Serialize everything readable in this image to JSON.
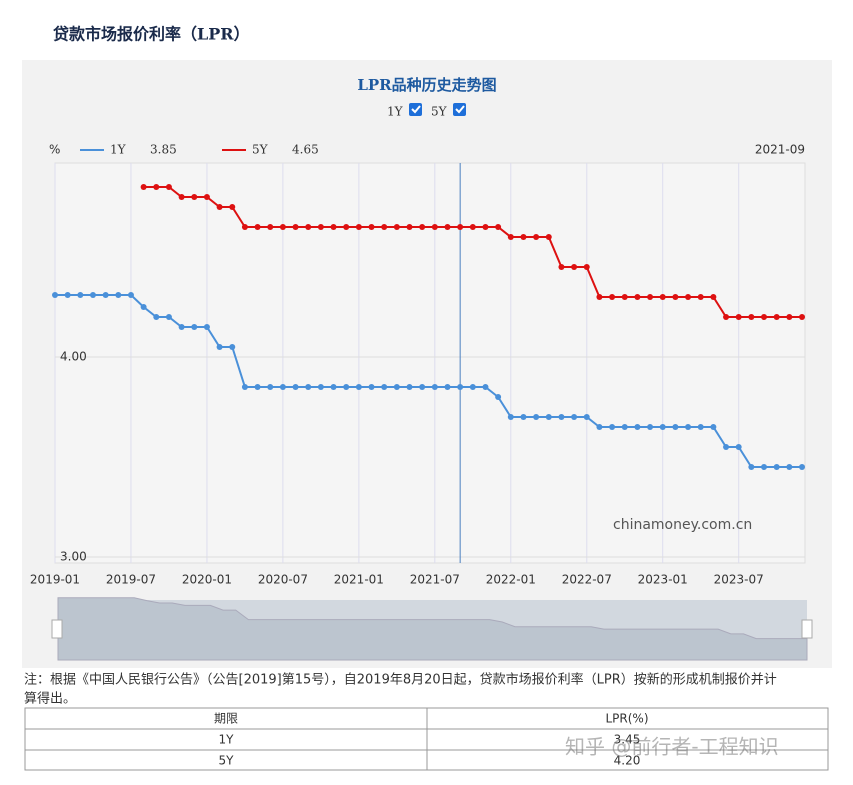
{
  "header": {
    "title": "贷款市场报价利率（LPR）"
  },
  "chart_data": {
    "type": "line",
    "title": "LPR品种历史走势图",
    "unit": "%",
    "toggles": [
      "1Y",
      "5Y"
    ],
    "hover": {
      "date": "2021-09",
      "values": [
        3.85,
        4.65
      ]
    },
    "watermark": "chinamoney.com.cn",
    "x": [
      "2019-01",
      "2019-02",
      "2019-03",
      "2019-04",
      "2019-05",
      "2019-06",
      "2019-07",
      "2019-08",
      "2019-09",
      "2019-10",
      "2019-11",
      "2019-12",
      "2020-01",
      "2020-02",
      "2020-03",
      "2020-04",
      "2020-05",
      "2020-06",
      "2020-07",
      "2020-08",
      "2020-09",
      "2020-10",
      "2020-11",
      "2020-12",
      "2021-01",
      "2021-02",
      "2021-03",
      "2021-04",
      "2021-05",
      "2021-06",
      "2021-07",
      "2021-08",
      "2021-09",
      "2021-10",
      "2021-11",
      "2021-12",
      "2022-01",
      "2022-02",
      "2022-03",
      "2022-04",
      "2022-05",
      "2022-06",
      "2022-07",
      "2022-08",
      "2022-09",
      "2022-10",
      "2022-11",
      "2022-12",
      "2023-01",
      "2023-02",
      "2023-03",
      "2023-04",
      "2023-05",
      "2023-06",
      "2023-07",
      "2023-08",
      "2023-09",
      "2023-10",
      "2023-11",
      "2023-12"
    ],
    "xticks": [
      "2019-01",
      "2019-07",
      "2020-01",
      "2020-07",
      "2021-01",
      "2021-07",
      "2022-01",
      "2022-07",
      "2023-01",
      "2023-07"
    ],
    "ylim": [
      3,
      5
    ],
    "yticks": [
      {
        "value": 3,
        "label": "3.00"
      },
      {
        "value": 4,
        "label": "4.00"
      }
    ],
    "grid": true,
    "series": [
      {
        "name": "1Y",
        "color": "#4a90d9",
        "values": [
          4.31,
          4.31,
          4.31,
          4.31,
          4.31,
          4.31,
          4.31,
          4.25,
          4.2,
          4.2,
          4.15,
          4.15,
          4.15,
          4.05,
          4.05,
          3.85,
          3.85,
          3.85,
          3.85,
          3.85,
          3.85,
          3.85,
          3.85,
          3.85,
          3.85,
          3.85,
          3.85,
          3.85,
          3.85,
          3.85,
          3.85,
          3.85,
          3.85,
          3.85,
          3.85,
          3.8,
          3.7,
          3.7,
          3.7,
          3.7,
          3.7,
          3.7,
          3.7,
          3.65,
          3.65,
          3.65,
          3.65,
          3.65,
          3.65,
          3.65,
          3.65,
          3.65,
          3.65,
          3.55,
          3.55,
          3.45,
          3.45,
          3.45,
          3.45,
          3.45
        ]
      },
      {
        "name": "5Y",
        "color": "#dd1111",
        "values": [
          null,
          null,
          null,
          null,
          null,
          null,
          null,
          4.85,
          4.85,
          4.85,
          4.8,
          4.8,
          4.8,
          4.75,
          4.75,
          4.65,
          4.65,
          4.65,
          4.65,
          4.65,
          4.65,
          4.65,
          4.65,
          4.65,
          4.65,
          4.65,
          4.65,
          4.65,
          4.65,
          4.65,
          4.65,
          4.65,
          4.65,
          4.65,
          4.65,
          4.65,
          4.6,
          4.6,
          4.6,
          4.6,
          4.45,
          4.45,
          4.45,
          4.3,
          4.3,
          4.3,
          4.3,
          4.3,
          4.3,
          4.3,
          4.3,
          4.3,
          4.3,
          4.2,
          4.2,
          4.2,
          4.2,
          4.2,
          4.2,
          4.2
        ]
      }
    ]
  },
  "note": [
    "注：根据《中国人民银行公告》（公告[2019]第15号），自2019年8月20日起，贷款市场报价利率（LPR）按新的形成机制报价并计",
    "算得出。"
  ],
  "table": {
    "header": [
      "期限",
      "LPR(%)"
    ],
    "rows": [
      [
        "1Y",
        "3.45"
      ],
      [
        "5Y",
        "4.20"
      ]
    ]
  },
  "overlay": "知乎 @前行者-工程知识"
}
